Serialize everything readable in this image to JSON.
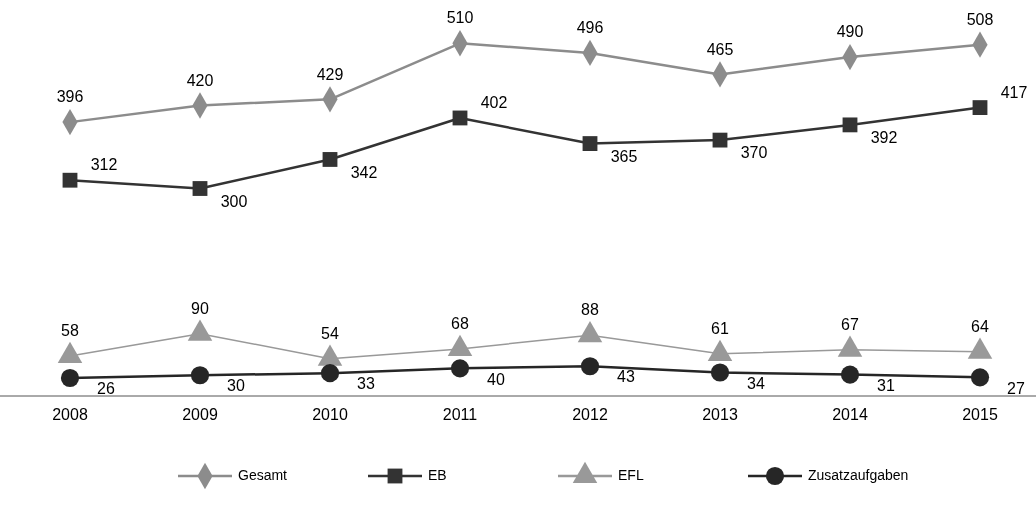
{
  "chart_data": {
    "type": "line",
    "categories": [
      "2008",
      "2009",
      "2010",
      "2011",
      "2012",
      "2013",
      "2014",
      "2015"
    ],
    "series": [
      {
        "name": "Gesamt",
        "color": "#8c8c8c",
        "marker": "diamond",
        "values": [
          396,
          420,
          429,
          510,
          496,
          465,
          490,
          508
        ]
      },
      {
        "name": "EB",
        "color": "#333333",
        "marker": "square",
        "values": [
          312,
          300,
          342,
          402,
          365,
          370,
          392,
          417
        ]
      },
      {
        "name": "EFL",
        "color": "#999999",
        "marker": "triangle",
        "values": [
          58,
          90,
          54,
          68,
          88,
          61,
          67,
          64
        ]
      },
      {
        "name": "Zusatzaufgaben",
        "color": "#262626",
        "marker": "circle",
        "values": [
          26,
          30,
          33,
          40,
          43,
          34,
          31,
          27
        ]
      }
    ],
    "tick_labels": "x",
    "data_labels": true,
    "legend": "bottom"
  }
}
